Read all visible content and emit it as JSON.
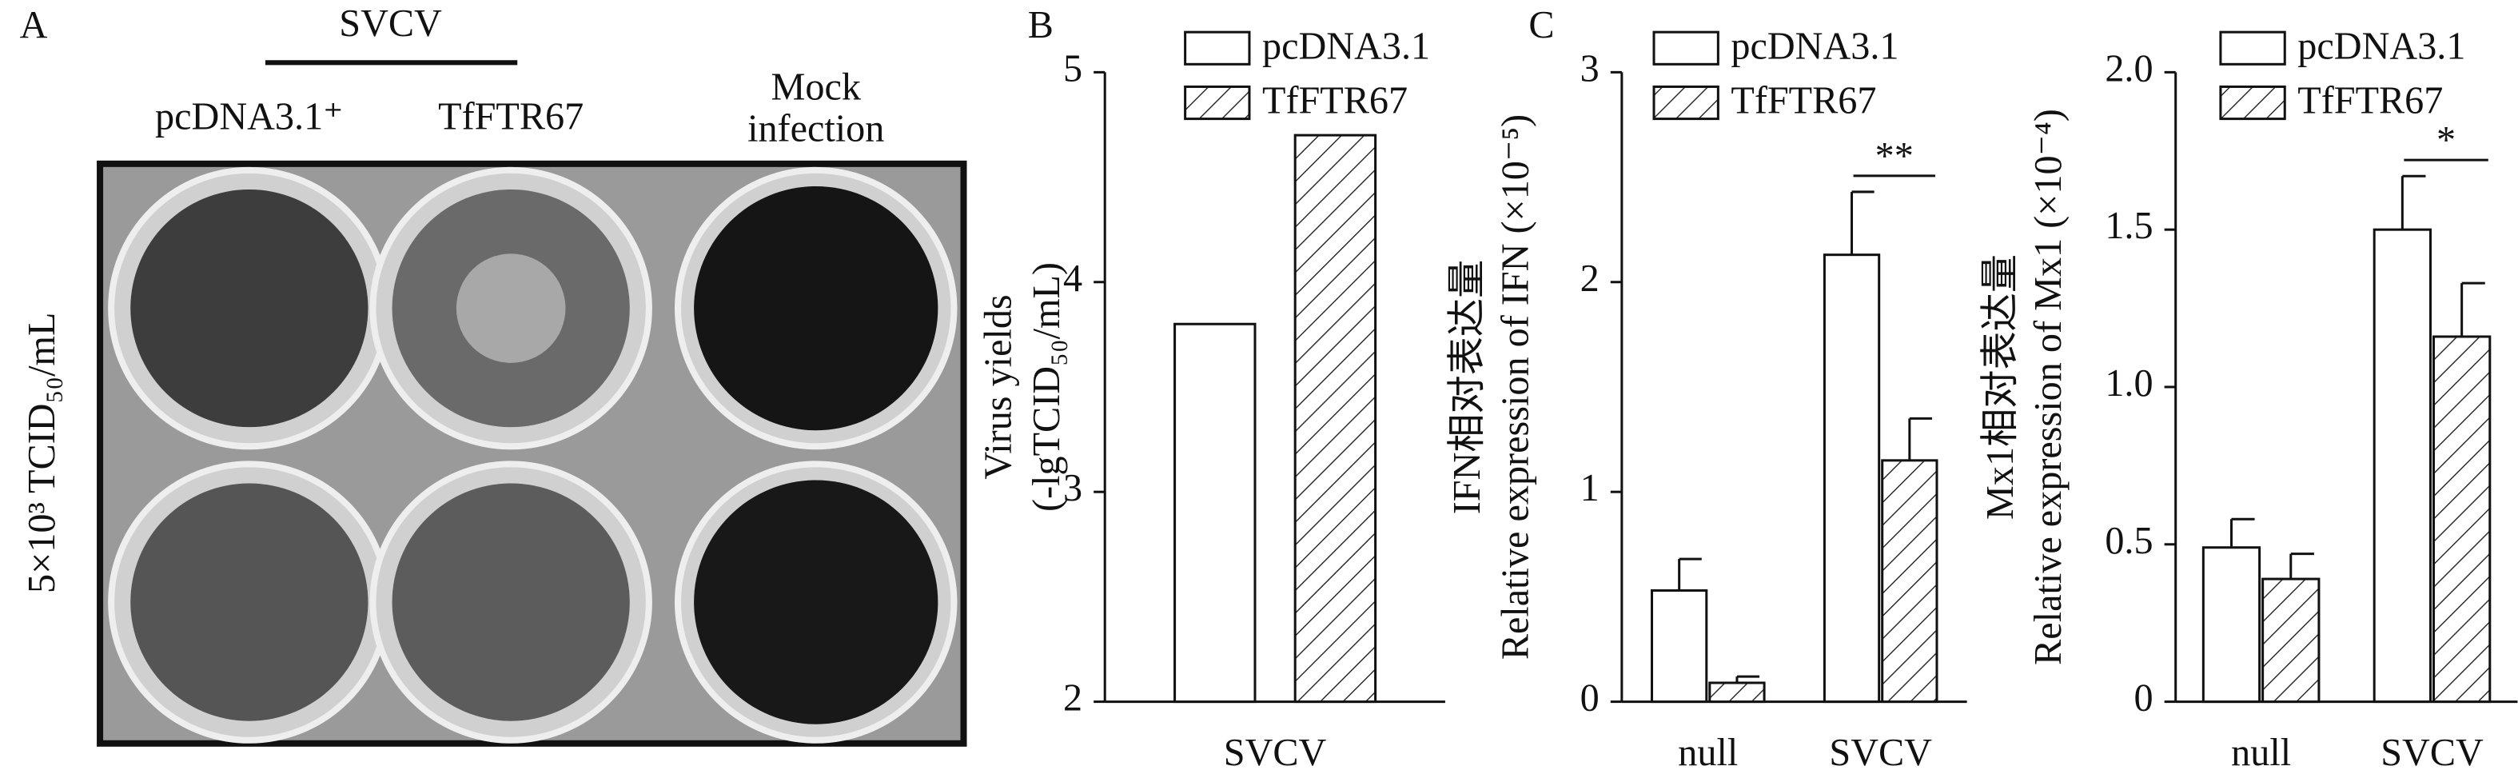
{
  "panel_labels": [
    "A",
    "B",
    "C"
  ],
  "panel_a": {
    "group_label": "SVCV",
    "columns": [
      "pcDNA3.1⁺",
      "TfFTR67",
      "Mock infection"
    ],
    "row_label": "5×10³ TCID₅₀/mL"
  },
  "chart_data": [
    {
      "type": "bar",
      "categories": [
        "SVCV"
      ],
      "y_label": [
        "Virus yields",
        "(-lgTCID₅₀/mL)"
      ],
      "series": [
        {
          "name": "pcDNA3.1",
          "color": "#ffffff",
          "pattern": "solid",
          "values": [
            3.8
          ]
        },
        {
          "name": "TfFTR67",
          "color": "#ffffff",
          "pattern": "hatch",
          "values": [
            4.7
          ]
        }
      ],
      "ylim": [
        2,
        5
      ],
      "yticks": [
        2,
        3,
        4,
        5
      ]
    },
    {
      "type": "bar",
      "categories": [
        "null",
        "SVCV"
      ],
      "y_label": [
        "IFN相对表达量",
        "Relative expression of IFN (×10⁻⁵)"
      ],
      "series": [
        {
          "name": "pcDNA3.1",
          "color": "#ffffff",
          "pattern": "solid",
          "values": [
            0.53,
            2.13
          ],
          "errors": [
            0.15,
            0.3
          ]
        },
        {
          "name": "TfFTR67",
          "color": "#ffffff",
          "pattern": "hatch",
          "values": [
            0.09,
            1.15
          ],
          "errors": [
            0.03,
            0.2
          ]
        }
      ],
      "ylim": [
        0,
        3
      ],
      "yticks": [
        0,
        1,
        2,
        3
      ],
      "annotations": [
        "**"
      ]
    },
    {
      "type": "bar",
      "categories": [
        "null",
        "SVCV"
      ],
      "y_label": [
        "Mx1相对表达量",
        "Relative expression of Mx1 (×10⁻⁴)"
      ],
      "series": [
        {
          "name": "pcDNA3.1",
          "color": "#ffffff",
          "pattern": "solid",
          "values": [
            0.49,
            1.5
          ],
          "errors": [
            0.09,
            0.17
          ]
        },
        {
          "name": "TfFTR67",
          "color": "#ffffff",
          "pattern": "hatch",
          "values": [
            0.39,
            1.16
          ],
          "errors": [
            0.08,
            0.17
          ]
        }
      ],
      "ylim": [
        0,
        2
      ],
      "yticks": [
        0,
        0.5,
        {
          "value": 1,
          "label": "1.0"
        },
        1.5,
        {
          "value": 2,
          "label": "2.0"
        }
      ],
      "annotations": [
        "*"
      ]
    }
  ]
}
